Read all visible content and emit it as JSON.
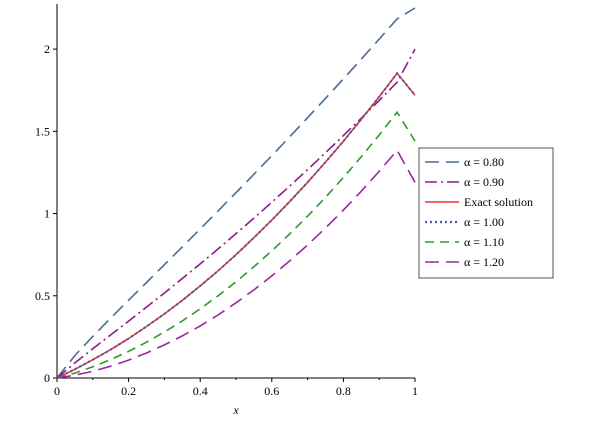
{
  "chart_data": {
    "type": "line",
    "xlabel": "x",
    "ylabel": "",
    "xlim": [
      0,
      1
    ],
    "ylim": [
      0,
      2.25
    ],
    "grid": false,
    "legend_position": "right",
    "x_ticks": [
      "0",
      "0.2",
      "0.4",
      "0.6",
      "0.8",
      "1"
    ],
    "y_ticks": [
      "0",
      "0.5",
      "1",
      "1.5",
      "2"
    ],
    "x": [
      0,
      0.05,
      0.1,
      0.15,
      0.2,
      0.25,
      0.3,
      0.35,
      0.4,
      0.45,
      0.5,
      0.55,
      0.6,
      0.65,
      0.7,
      0.75,
      0.8,
      0.85,
      0.9,
      0.95,
      1.0
    ],
    "series": [
      {
        "name": "α = 0.80",
        "color": "#4a6a98",
        "dash": "long-dash",
        "values": [
          0,
          0.137,
          0.253,
          0.364,
          0.473,
          0.581,
          0.689,
          0.797,
          0.906,
          1.016,
          1.127,
          1.239,
          1.352,
          1.467,
          1.583,
          1.7,
          1.819,
          1.939,
          2.061,
          2.184,
          2.25
        ]
      },
      {
        "name": "α = 0.90",
        "color": "#8b1a8b",
        "dash": "dash-dot",
        "values": [
          0,
          0.092,
          0.178,
          0.262,
          0.346,
          0.431,
          0.517,
          0.605,
          0.694,
          0.785,
          0.878,
          0.972,
          1.069,
          1.167,
          1.267,
          1.37,
          1.474,
          1.58,
          1.688,
          1.798,
          2.0
        ]
      },
      {
        "name": "Exact solution",
        "color": "#ee3333",
        "dash": "solid",
        "values": [
          0,
          0.053,
          0.111,
          0.173,
          0.24,
          0.313,
          0.39,
          0.472,
          0.56,
          0.652,
          0.75,
          0.853,
          0.96,
          1.073,
          1.19,
          1.313,
          1.44,
          1.573,
          1.71,
          1.853,
          1.72
        ]
      },
      {
        "name": "α = 1.00",
        "color": "#3b5fa0",
        "dash": "dotted",
        "values": [
          0,
          0.053,
          0.111,
          0.173,
          0.24,
          0.313,
          0.39,
          0.472,
          0.56,
          0.652,
          0.75,
          0.853,
          0.96,
          1.073,
          1.19,
          1.313,
          1.44,
          1.573,
          1.71,
          1.853,
          1.72
        ]
      },
      {
        "name": "α = 1.10",
        "color": "#2e9a2e",
        "dash": "dash",
        "values": [
          0,
          0.03,
          0.068,
          0.112,
          0.162,
          0.218,
          0.28,
          0.347,
          0.421,
          0.5,
          0.585,
          0.676,
          0.773,
          0.876,
          0.984,
          1.099,
          1.219,
          1.346,
          1.478,
          1.617,
          1.44
        ]
      },
      {
        "name": "α = 1.20",
        "color": "#9a2a9a",
        "dash": "long-dash",
        "values": [
          0,
          0.017,
          0.041,
          0.072,
          0.109,
          0.152,
          0.201,
          0.256,
          0.317,
          0.384,
          0.457,
          0.536,
          0.621,
          0.712,
          0.809,
          0.912,
          1.021,
          1.136,
          1.257,
          1.384,
          1.19
        ]
      }
    ]
  }
}
